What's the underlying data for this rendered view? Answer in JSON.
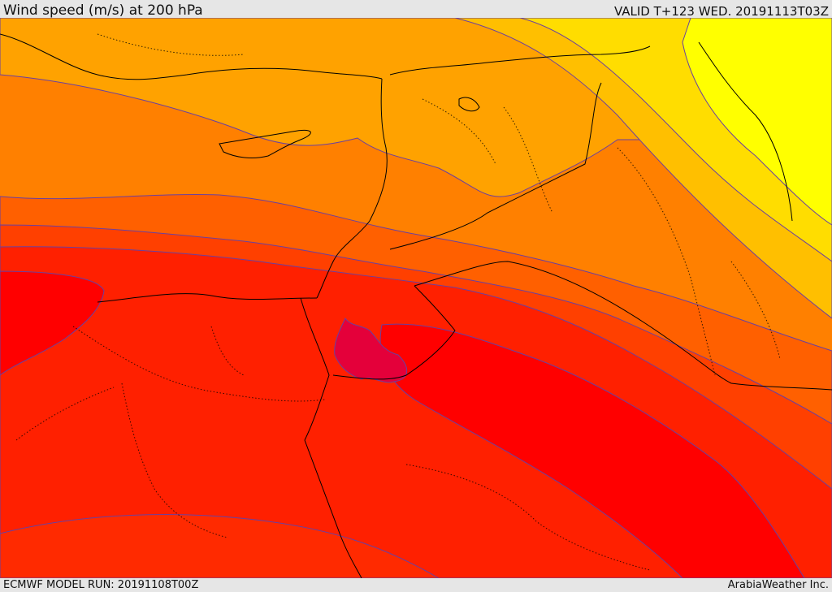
{
  "header": {
    "title": "Wind speed (m/s) at 200 hPa",
    "valid": "VALID T+123 WED. 20191113T03Z"
  },
  "footer": {
    "model_run": "ECMWF MODEL RUN: 20191108T00Z",
    "credit": "ArabiaWeather Inc."
  },
  "map": {
    "field": "wind-speed",
    "colors": {
      "yellow": "#ffff00",
      "gold": "#ffdd00",
      "amber": "#ffbf00",
      "light_orange": "#ffa200",
      "orange": "#ff8000",
      "dark_orange": "#ff6000",
      "red_orange": "#ff4000",
      "scarlet": "#ff2000",
      "red": "#ff0000",
      "crimson": "#e4003a",
      "contour": "#5a3fb0",
      "border": "#000000"
    }
  }
}
